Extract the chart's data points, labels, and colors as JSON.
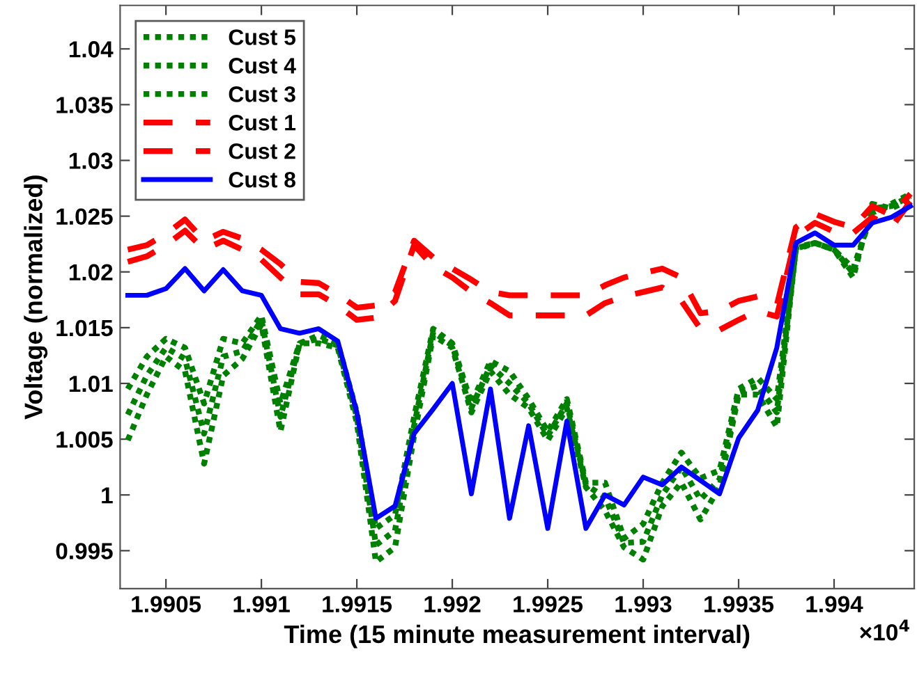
{
  "chart_data": {
    "type": "line",
    "xlabel": "Time (15 minute measurement interval)",
    "ylabel": "Voltage (normalized)",
    "x": [
      1.9903,
      1.9904,
      1.9905,
      1.9906,
      1.9907,
      1.9908,
      1.9909,
      1.991,
      1.9911,
      1.9912,
      1.9913,
      1.9914,
      1.9915,
      1.9916,
      1.9917,
      1.9918,
      1.9919,
      1.992,
      1.9921,
      1.9922,
      1.9923,
      1.9924,
      1.9925,
      1.9926,
      1.9927,
      1.9928,
      1.9929,
      1.993,
      1.9931,
      1.9932,
      1.9933,
      1.9934,
      1.9935,
      1.9936,
      1.9937,
      1.9938,
      1.9939,
      1.994,
      1.9941,
      1.9942,
      1.9943,
      1.9944
    ],
    "series": [
      {
        "name": "Cust 5",
        "color": "#008000",
        "line_style": "dotted",
        "values": [
          1.0095,
          1.0124,
          1.014,
          1.0132,
          1.0082,
          1.014,
          1.0136,
          1.0161,
          1.0082,
          1.0136,
          1.0143,
          1.0136,
          1.0074,
          0.997,
          0.9982,
          1.007,
          1.0149,
          1.0136,
          1.0082,
          1.012,
          1.0111,
          1.0086,
          1.0057,
          1.0086,
          1.0011,
          1.0011,
          0.9961,
          0.9974,
          1.0011,
          1.0038,
          1.0015,
          1.0022,
          1.0095,
          1.0105,
          1.0086,
          1.022,
          1.0226,
          1.022,
          1.0203,
          1.0253,
          1.0261,
          1.027
        ]
      },
      {
        "name": "Cust 4",
        "color": "#008000",
        "line_style": "dotted",
        "values": [
          1.0049,
          1.009,
          1.0124,
          1.0111,
          1.0028,
          1.0107,
          1.0122,
          1.0153,
          1.0057,
          1.0136,
          1.0136,
          1.0132,
          1.0065,
          0.994,
          0.9953,
          1.0053,
          1.0143,
          1.0132,
          1.0074,
          1.0111,
          1.009,
          1.0078,
          1.0049,
          1.0078,
          1.0007,
          0.9986,
          0.9953,
          0.9942,
          0.999,
          1.0011,
          0.9978,
          1.0007,
          1.009,
          1.009,
          1.0061,
          1.0222,
          1.0226,
          1.022,
          1.0195,
          1.0261,
          1.0257,
          1.0265
        ]
      },
      {
        "name": "Cust 3",
        "color": "#008000",
        "line_style": "dotted",
        "values": [
          1.0072,
          1.0107,
          1.0132,
          1.0122,
          1.0055,
          1.0124,
          1.0129,
          1.0157,
          1.007,
          1.0136,
          1.014,
          1.0134,
          1.007,
          0.9955,
          0.9968,
          1.0062,
          1.0146,
          1.0134,
          1.0078,
          1.0116,
          1.01,
          1.0082,
          1.0053,
          1.0082,
          1.0009,
          0.9998,
          0.9957,
          0.9958,
          1.0,
          1.0025,
          0.9996,
          1.0014,
          1.0092,
          1.0098,
          1.0074,
          1.0221,
          1.0226,
          1.022,
          1.0199,
          1.0257,
          1.0259,
          1.0268
        ]
      },
      {
        "name": "Cust 1",
        "color": "#ff0000",
        "line_style": "dashed",
        "values": [
          1.022,
          1.0224,
          1.0234,
          1.0247,
          1.0228,
          1.0236,
          1.023,
          1.022,
          1.0207,
          1.0191,
          1.019,
          1.018,
          1.0168,
          1.017,
          1.0182,
          1.0228,
          1.0213,
          1.0203,
          1.0193,
          1.0182,
          1.0179,
          1.0179,
          1.0179,
          1.0179,
          1.0179,
          1.0188,
          1.0195,
          1.0199,
          1.0203,
          1.0195,
          1.0163,
          1.0165,
          1.0174,
          1.0178,
          1.017,
          1.024,
          1.0252,
          1.0245,
          1.024,
          1.0259,
          1.0251,
          1.027
        ]
      },
      {
        "name": "Cust 2",
        "color": "#ff0000",
        "line_style": "dashed",
        "values": [
          1.0209,
          1.0214,
          1.0224,
          1.0237,
          1.022,
          1.0228,
          1.022,
          1.0211,
          1.0195,
          1.018,
          1.018,
          1.017,
          1.0157,
          1.0159,
          1.0174,
          1.0224,
          1.0205,
          1.0195,
          1.0182,
          1.0172,
          1.0161,
          1.0161,
          1.0161,
          1.0161,
          1.0161,
          1.0172,
          1.0178,
          1.0182,
          1.0186,
          1.0174,
          1.0149,
          1.0148,
          1.0157,
          1.0165,
          1.016,
          1.0232,
          1.0244,
          1.0236,
          1.0235,
          1.0249,
          1.024,
          1.0263
        ]
      },
      {
        "name": "Cust 8",
        "color": "#0000ff",
        "line_style": "solid",
        "values": [
          1.0179,
          1.0179,
          1.0185,
          1.0203,
          1.0183,
          1.0202,
          1.0183,
          1.0179,
          1.0149,
          1.0145,
          1.0149,
          1.0138,
          1.0074,
          0.9979,
          0.999,
          1.0055,
          1.0077,
          1.01,
          1.0001,
          1.0095,
          0.9979,
          1.0062,
          0.997,
          1.0066,
          0.997,
          1.0,
          0.9991,
          1.0016,
          1.0009,
          1.0025,
          1.0013,
          1.0001,
          1.0051,
          1.0076,
          1.0132,
          1.0226,
          1.0235,
          1.0224,
          1.0224,
          1.0244,
          1.0249,
          1.0259
        ]
      }
    ],
    "xlim": [
      1.99026,
      1.99442
    ],
    "ylim": [
      0.9916,
      1.0439
    ],
    "xticks": [
      1.9905,
      1.991,
      1.9915,
      1.992,
      1.9925,
      1.993,
      1.9935,
      1.994
    ],
    "yticks": [
      0.995,
      1,
      1.005,
      1.01,
      1.015,
      1.02,
      1.025,
      1.03,
      1.035,
      1.04
    ],
    "annotations": [
      "×10$^{4}$"
    ],
    "legend": "top left",
    "grid": false,
    "marker": "none"
  }
}
